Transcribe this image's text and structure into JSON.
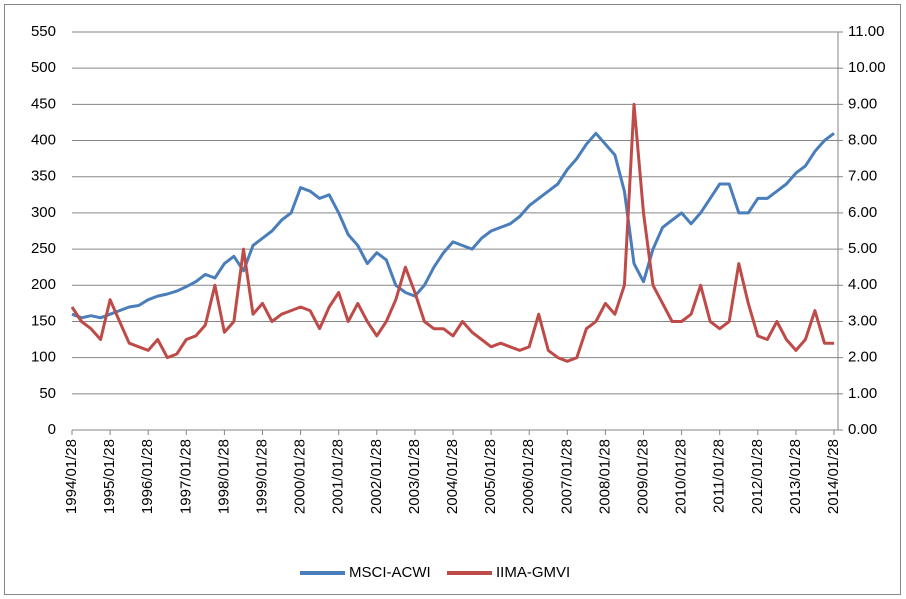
{
  "chart_data": {
    "type": "line",
    "x": [
      "1994/01/28",
      "1994/04/28",
      "1994/07/28",
      "1994/10/28",
      "1995/01/28",
      "1995/04/28",
      "1995/07/28",
      "1995/10/28",
      "1996/01/28",
      "1996/04/28",
      "1996/07/28",
      "1996/10/28",
      "1997/01/28",
      "1997/04/28",
      "1997/07/28",
      "1997/10/28",
      "1998/01/28",
      "1998/04/28",
      "1998/07/28",
      "1998/10/28",
      "1999/01/28",
      "1999/04/28",
      "1999/07/28",
      "1999/10/28",
      "2000/01/28",
      "2000/04/28",
      "2000/07/28",
      "2000/10/28",
      "2001/01/28",
      "2001/04/28",
      "2001/07/28",
      "2001/10/28",
      "2002/01/28",
      "2002/04/28",
      "2002/07/28",
      "2002/10/28",
      "2003/01/28",
      "2003/04/28",
      "2003/07/28",
      "2003/10/28",
      "2004/01/28",
      "2004/04/28",
      "2004/07/28",
      "2004/10/28",
      "2005/01/28",
      "2005/04/28",
      "2005/07/28",
      "2005/10/28",
      "2006/01/28",
      "2006/04/28",
      "2006/07/28",
      "2006/10/28",
      "2007/01/28",
      "2007/04/28",
      "2007/07/28",
      "2007/10/28",
      "2008/01/28",
      "2008/04/28",
      "2008/07/28",
      "2008/10/28",
      "2009/01/28",
      "2009/04/28",
      "2009/07/28",
      "2009/10/28",
      "2010/01/28",
      "2010/04/28",
      "2010/07/28",
      "2010/10/28",
      "2011/01/28",
      "2011/04/28",
      "2011/07/28",
      "2011/10/28",
      "2012/01/28",
      "2012/04/28",
      "2012/07/28",
      "2012/10/28",
      "2013/01/28",
      "2013/04/28",
      "2013/07/28",
      "2013/10/28",
      "2014/01/28"
    ],
    "series": [
      {
        "name": "MSCI-ACWI",
        "color": "#4a7ebb",
        "values": [
          160,
          155,
          158,
          155,
          160,
          165,
          170,
          172,
          180,
          185,
          188,
          192,
          198,
          205,
          215,
          210,
          230,
          240,
          220,
          255,
          265,
          275,
          290,
          300,
          335,
          330,
          320,
          325,
          300,
          270,
          255,
          230,
          245,
          235,
          200,
          190,
          185,
          200,
          225,
          245,
          260,
          255,
          250,
          265,
          275,
          280,
          285,
          295,
          310,
          320,
          330,
          340,
          360,
          375,
          395,
          410,
          395,
          380,
          330,
          230,
          205,
          250,
          280,
          290,
          300,
          285,
          300,
          320,
          340,
          340,
          300,
          300,
          320,
          320,
          330,
          340,
          355,
          365,
          385,
          400,
          410
        ]
      },
      {
        "name": "IIMA-GMVI",
        "color": "#be4b48",
        "axis": "y2",
        "values": [
          3.4,
          3.0,
          2.8,
          2.5,
          3.6,
          3.0,
          2.4,
          2.3,
          2.2,
          2.5,
          2.0,
          2.1,
          2.5,
          2.6,
          2.9,
          4.0,
          2.7,
          3.0,
          5.0,
          3.2,
          3.5,
          3.0,
          3.2,
          3.3,
          3.4,
          3.3,
          2.8,
          3.4,
          3.8,
          3.0,
          3.5,
          3.0,
          2.6,
          3.0,
          3.6,
          4.5,
          3.8,
          3.0,
          2.8,
          2.8,
          2.6,
          3.0,
          2.7,
          2.5,
          2.3,
          2.4,
          2.3,
          2.2,
          2.3,
          3.2,
          2.2,
          2.0,
          1.9,
          2.0,
          2.8,
          3.0,
          3.5,
          3.2,
          4.0,
          9.0,
          6.0,
          4.0,
          3.5,
          3.0,
          3.0,
          3.2,
          4.0,
          3.0,
          2.8,
          3.0,
          4.6,
          3.5,
          2.6,
          2.5,
          3.0,
          2.5,
          2.2,
          2.5,
          3.3,
          2.4,
          2.4
        ]
      }
    ],
    "xticks": [
      "1994/01/28",
      "1995/01/28",
      "1996/01/28",
      "1997/01/28",
      "1998/01/28",
      "1999/01/28",
      "2000/01/28",
      "2001/01/28",
      "2002/01/28",
      "2003/01/28",
      "2004/01/28",
      "2005/01/28",
      "2006/01/28",
      "2007/01/28",
      "2008/01/28",
      "2009/01/28",
      "2010/01/28",
      "2011/01/28",
      "2012/01/28",
      "2013/01/28",
      "2014/01/28"
    ],
    "ylim": [
      0,
      550
    ],
    "yticks": [
      0,
      50,
      100,
      150,
      200,
      250,
      300,
      350,
      400,
      450,
      500,
      550
    ],
    "y2lim": [
      0,
      11
    ],
    "y2ticks": [
      {
        "value": 0,
        "label": "0.00"
      },
      {
        "value": 1,
        "label": "1.00"
      },
      {
        "value": 2,
        "label": "2.00"
      },
      {
        "value": 3,
        "label": "3.00"
      },
      {
        "value": 4,
        "label": "4.00"
      },
      {
        "value": 5,
        "label": "5.00"
      },
      {
        "value": 6,
        "label": "6.00"
      },
      {
        "value": 7,
        "label": "7.00"
      },
      {
        "value": 8,
        "label": "8.00"
      },
      {
        "value": 9,
        "label": "9.00"
      },
      {
        "value": 10,
        "label": "10.00"
      },
      {
        "value": 11,
        "label": "11.00"
      }
    ],
    "grid": true,
    "legend": "bottom"
  }
}
